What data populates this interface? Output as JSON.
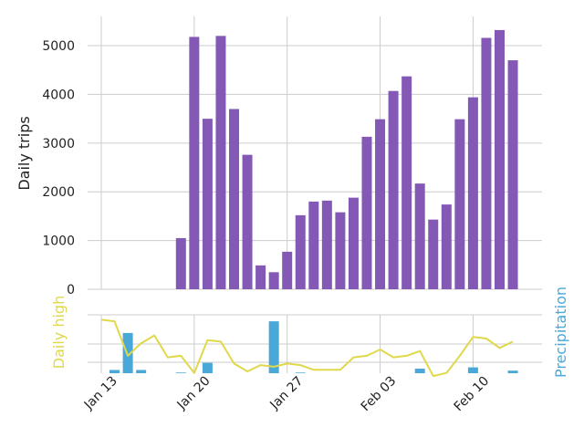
{
  "chart_data": {
    "type": "bar",
    "x": [
      "2014-01-13",
      "2014-01-14",
      "2014-01-15",
      "2014-01-16",
      "2014-01-17",
      "2014-01-18",
      "2014-01-19",
      "2014-01-20",
      "2014-01-21",
      "2014-01-22",
      "2014-01-23",
      "2014-01-24",
      "2014-01-25",
      "2014-01-26",
      "2014-01-27",
      "2014-01-28",
      "2014-01-29",
      "2014-01-30",
      "2014-01-31",
      "2014-02-01",
      "2014-02-02",
      "2014-02-03",
      "2014-02-04",
      "2014-02-05",
      "2014-02-06",
      "2014-02-07",
      "2014-02-08",
      "2014-02-09",
      "2014-02-10",
      "2014-02-11",
      "2014-02-12",
      "2014-02-13"
    ],
    "x_tick_labels": [
      "Jan 13",
      "Jan 20",
      "Jan 27",
      "Feb 03",
      "Feb 10"
    ],
    "trips": {
      "ylabel": "Daily trips",
      "yticks": [
        0,
        1000,
        2000,
        3000,
        4000,
        5000
      ],
      "ylim": [
        0,
        5600
      ],
      "color": "#8459b5",
      "values": [
        0,
        0,
        0,
        0,
        0,
        0,
        1050,
        5180,
        3500,
        5200,
        3700,
        2760,
        490,
        350,
        770,
        1520,
        1800,
        1820,
        1580,
        1880,
        3130,
        3490,
        4070,
        4370,
        2170,
        1430,
        1740,
        3490,
        3940,
        5160,
        5320,
        4700
      ]
    },
    "weather": {
      "left_label": "Daily high",
      "right_label": "Precipitation",
      "high_color": "#e0d84a",
      "precip_color": "#4aa8d8",
      "daily_high": [
        48,
        47,
        25,
        33,
        38,
        24,
        25,
        14,
        35,
        34,
        20,
        15,
        19,
        18,
        20,
        19,
        16,
        16,
        16,
        24,
        25,
        29,
        24,
        25,
        28,
        12,
        14,
        25,
        37,
        36,
        30,
        34
      ],
      "precipitation": [
        0,
        0.05,
        0.62,
        0.05,
        0,
        0,
        0.01,
        0,
        0.16,
        0,
        0,
        0,
        0,
        0.8,
        0,
        0.01,
        0,
        0,
        0,
        0,
        0,
        0,
        0,
        0,
        0.07,
        0,
        0,
        0,
        0.09,
        0,
        0,
        0.04
      ],
      "high_range": [
        15,
        50
      ],
      "precip_range": [
        0,
        0.9
      ]
    },
    "grid": true
  }
}
